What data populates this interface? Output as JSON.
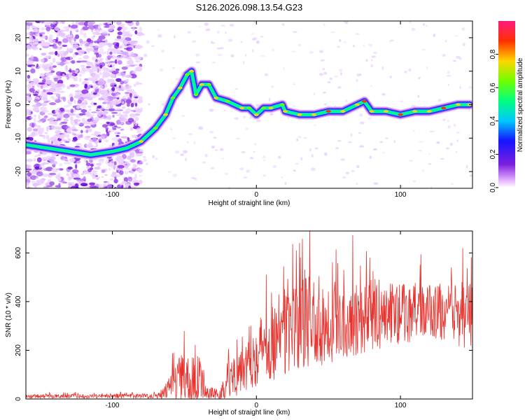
{
  "title": "S126.2026.098.13.54.G23",
  "chart_data": [
    {
      "type": "heatmap",
      "xlabel": "Height of straight line (km)",
      "ylabel": "Frequency (Hz)",
      "xlim": [
        -160,
        150
      ],
      "ylim": [
        -25,
        25
      ],
      "xticks": [
        -100,
        0,
        100
      ],
      "yticks": [
        -20,
        -10,
        0,
        10,
        20
      ],
      "colorbar": {
        "label": "Normalized spectral amplitude",
        "ticks": [
          0.0,
          0.2,
          0.4,
          0.6,
          0.8
        ],
        "range": [
          0,
          1
        ]
      },
      "ridge": [
        {
          "x": -160,
          "y": -12
        },
        {
          "x": -145,
          "y": -13
        },
        {
          "x": -130,
          "y": -14
        },
        {
          "x": -115,
          "y": -15
        },
        {
          "x": -100,
          "y": -14
        },
        {
          "x": -90,
          "y": -13
        },
        {
          "x": -80,
          "y": -11
        },
        {
          "x": -70,
          "y": -7
        },
        {
          "x": -63,
          "y": -3
        },
        {
          "x": -58,
          "y": 2
        },
        {
          "x": -53,
          "y": 5
        },
        {
          "x": -48,
          "y": 9
        },
        {
          "x": -45,
          "y": 10
        },
        {
          "x": -42,
          "y": 3
        },
        {
          "x": -38,
          "y": 6
        },
        {
          "x": -33,
          "y": 6
        },
        {
          "x": -28,
          "y": 2
        },
        {
          "x": -20,
          "y": 1
        },
        {
          "x": -10,
          "y": -1
        },
        {
          "x": -5,
          "y": -1
        },
        {
          "x": 0,
          "y": -3
        },
        {
          "x": 5,
          "y": -1
        },
        {
          "x": 10,
          "y": -1
        },
        {
          "x": 18,
          "y": 0
        },
        {
          "x": 20,
          "y": -2
        },
        {
          "x": 30,
          "y": -3
        },
        {
          "x": 40,
          "y": -3
        },
        {
          "x": 50,
          "y": -2
        },
        {
          "x": 60,
          "y": -2
        },
        {
          "x": 70,
          "y": 0
        },
        {
          "x": 75,
          "y": 1
        },
        {
          "x": 80,
          "y": -2
        },
        {
          "x": 90,
          "y": -2
        },
        {
          "x": 100,
          "y": -3
        },
        {
          "x": 110,
          "y": -2
        },
        {
          "x": 120,
          "y": -2
        },
        {
          "x": 130,
          "y": -1
        },
        {
          "x": 140,
          "y": 0
        },
        {
          "x": 148,
          "y": 0
        }
      ]
    },
    {
      "type": "line",
      "xlabel": "Height of straight line (km)",
      "ylabel": "SNR (10 * v/v)",
      "xlim": [
        -160,
        150
      ],
      "ylim": [
        0,
        690
      ],
      "xticks": [
        -100,
        0,
        100
      ],
      "yticks": [
        0,
        200,
        400,
        600
      ],
      "color": "#e8322d",
      "envelope": [
        {
          "x": -160,
          "base": 10,
          "amp": 12
        },
        {
          "x": -70,
          "base": 12,
          "amp": 15
        },
        {
          "x": -62,
          "base": 30,
          "amp": 60
        },
        {
          "x": -55,
          "base": 70,
          "amp": 150
        },
        {
          "x": -48,
          "base": 60,
          "amp": 190
        },
        {
          "x": -40,
          "base": 50,
          "amp": 180
        },
        {
          "x": -35,
          "base": 25,
          "amp": 50
        },
        {
          "x": -25,
          "base": 15,
          "amp": 30
        },
        {
          "x": -20,
          "base": 70,
          "amp": 130
        },
        {
          "x": -10,
          "base": 130,
          "amp": 180
        },
        {
          "x": 0,
          "base": 180,
          "amp": 220
        },
        {
          "x": 20,
          "base": 260,
          "amp": 280
        },
        {
          "x": 40,
          "base": 300,
          "amp": 300
        },
        {
          "x": 80,
          "base": 330,
          "amp": 230
        },
        {
          "x": 120,
          "base": 350,
          "amp": 170
        },
        {
          "x": 150,
          "base": 330,
          "amp": 220
        }
      ]
    }
  ]
}
